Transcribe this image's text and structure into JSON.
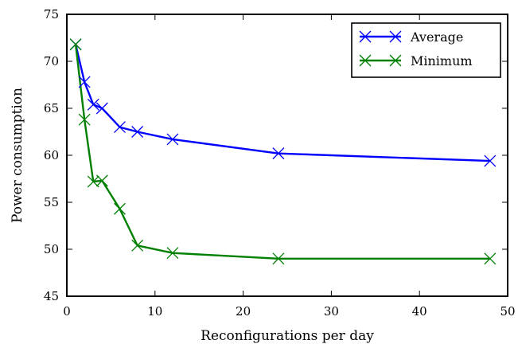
{
  "chart_data": {
    "type": "line",
    "title": "",
    "xlabel": "Reconfigurations per day",
    "ylabel": "Power consumption",
    "xlim": [
      0,
      50
    ],
    "ylim": [
      45,
      75
    ],
    "xticks": [
      "0",
      "10",
      "20",
      "30",
      "40",
      "50"
    ],
    "yticks": [
      "45",
      "50",
      "55",
      "60",
      "65",
      "70",
      "75"
    ],
    "grid": false,
    "legend_position": "top-right",
    "series": [
      {
        "name": "Average",
        "color": "#0000ff",
        "marker": "x",
        "x": [
          1,
          2,
          3,
          4,
          6,
          8,
          12,
          24,
          48
        ],
        "y": [
          71.8,
          67.8,
          65.4,
          65.0,
          63.0,
          62.5,
          61.7,
          60.2,
          59.4
        ]
      },
      {
        "name": "Minimum",
        "color": "#008000",
        "marker": "x",
        "x": [
          1,
          2,
          3,
          4,
          6,
          8,
          12,
          24,
          48
        ],
        "y": [
          71.8,
          63.8,
          57.2,
          57.3,
          54.3,
          50.4,
          49.6,
          49.0,
          49.0
        ]
      }
    ]
  }
}
